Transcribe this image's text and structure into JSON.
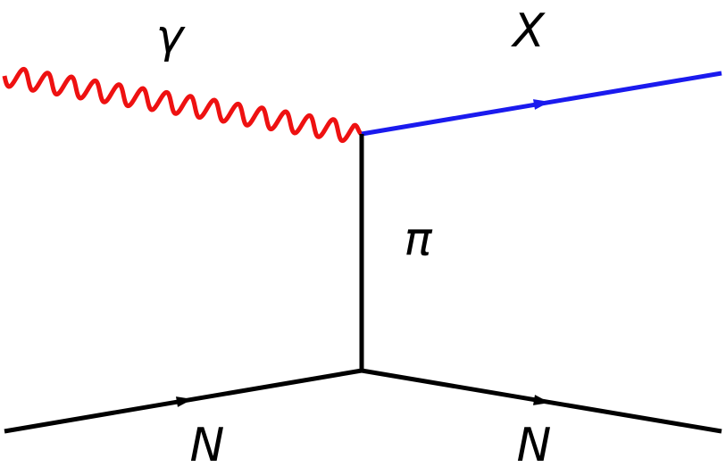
{
  "particles": {
    "photon": "γ",
    "outgoing": "X",
    "exchange": "π",
    "nucleon_in": "N",
    "nucleon_out": "N"
  }
}
